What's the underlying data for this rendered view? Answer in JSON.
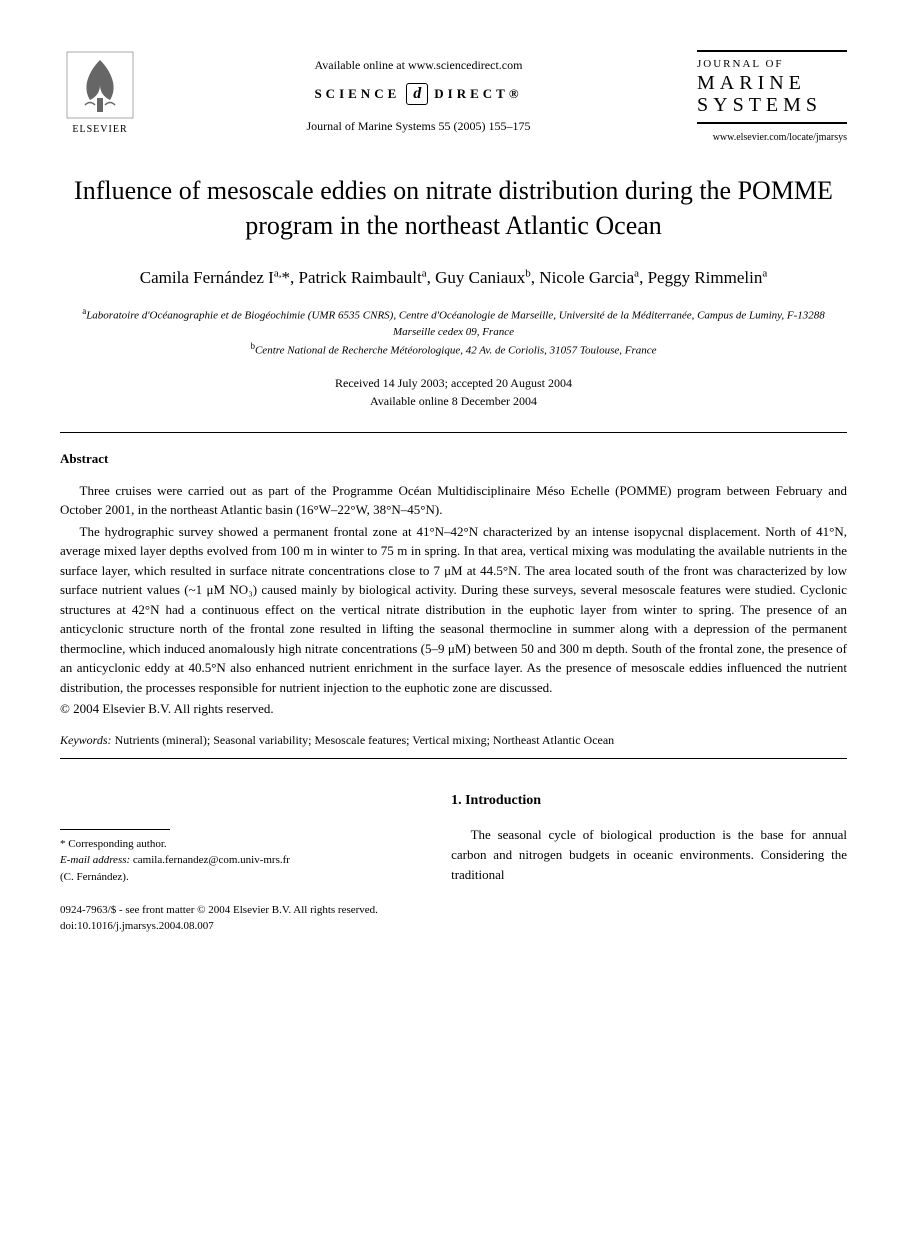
{
  "header": {
    "publisher_name": "ELSEVIER",
    "available_text": "Available online at www.sciencedirect.com",
    "sd_left": "SCIENCE",
    "sd_right": "DIRECT®",
    "sd_glyph": "d",
    "citation": "Journal of Marine Systems 55 (2005) 155–175",
    "journal_line1": "JOURNAL OF",
    "journal_line2": "MARINE",
    "journal_line3": "SYSTEMS",
    "journal_url": "www.elsevier.com/locate/jmarsys"
  },
  "title": "Influence of mesoscale eddies on nitrate distribution during the POMME program in the northeast Atlantic Ocean",
  "authors_html": "Camila Fernández I<sup>a,</sup>*, Patrick Raimbault<sup>a</sup>, Guy Caniaux<sup>b</sup>, Nicole Garcia<sup>a</sup>, Peggy Rimmelin<sup>a</sup>",
  "affiliations": {
    "a": "Laboratoire d'Océanographie et de Biogéochimie (UMR 6535 CNRS), Centre d'Océanologie de Marseille, Université de la Méditerranée, Campus de Luminy, F-13288 Marseille cedex 09, France",
    "b": "Centre National de Recherche Météorologique, 42 Av. de Coriolis, 31057 Toulouse, France"
  },
  "dates": {
    "received_accepted": "Received 14 July 2003; accepted 20 August 2004",
    "online": "Available online 8 December 2004"
  },
  "abstract": {
    "heading": "Abstract",
    "p1": "Three cruises were carried out as part of the Programme Océan Multidisciplinaire Méso Echelle (POMME) program between February and October 2001, in the northeast Atlantic basin (16°W–22°W, 38°N–45°N).",
    "p2": "The hydrographic survey showed a permanent frontal zone at 41°N–42°N characterized by an intense isopycnal displacement. North of 41°N, average mixed layer depths evolved from 100 m in winter to 75 m in spring. In that area, vertical mixing was modulating the available nutrients in the surface layer, which resulted in surface nitrate concentrations close to 7 μM at 44.5°N. The area located south of the front was characterized by low surface nutrient values (~1 μM NO₃) caused mainly by biological activity. During these surveys, several mesoscale features were studied. Cyclonic structures at 42°N had a continuous effect on the vertical nitrate distribution in the euphotic layer from winter to spring. The presence of an anticyclonic structure north of the frontal zone resulted in lifting the seasonal thermocline in summer along with a depression of the permanent thermocline, which induced anomalously high nitrate concentrations (5–9 μM) between 50 and 300 m depth. South of the frontal zone, the presence of an anticyclonic eddy at 40.5°N also enhanced nutrient enrichment in the surface layer. As the presence of mesoscale eddies influenced the nutrient distribution, the processes responsible for nutrient injection to the euphotic zone are discussed.",
    "copyright": "© 2004 Elsevier B.V. All rights reserved."
  },
  "keywords": {
    "label": "Keywords:",
    "text": "Nutrients (mineral); Seasonal variability; Mesoscale features; Vertical mixing; Northeast Atlantic Ocean"
  },
  "footnote": {
    "corr": "* Corresponding author.",
    "email_label": "E-mail address:",
    "email": "camila.fernandez@com.univ-mrs.fr",
    "email_name": "(C. Fernández)."
  },
  "intro": {
    "heading": "1. Introduction",
    "p1": "The seasonal cycle of biological production is the base for annual carbon and nitrogen budgets in oceanic environments. Considering the traditional"
  },
  "footer": {
    "issn": "0924-7963/$ - see front matter © 2004 Elsevier B.V. All rights reserved.",
    "doi": "doi:10.1016/j.jmarsys.2004.08.007"
  },
  "colors": {
    "text": "#000000",
    "background": "#ffffff"
  }
}
